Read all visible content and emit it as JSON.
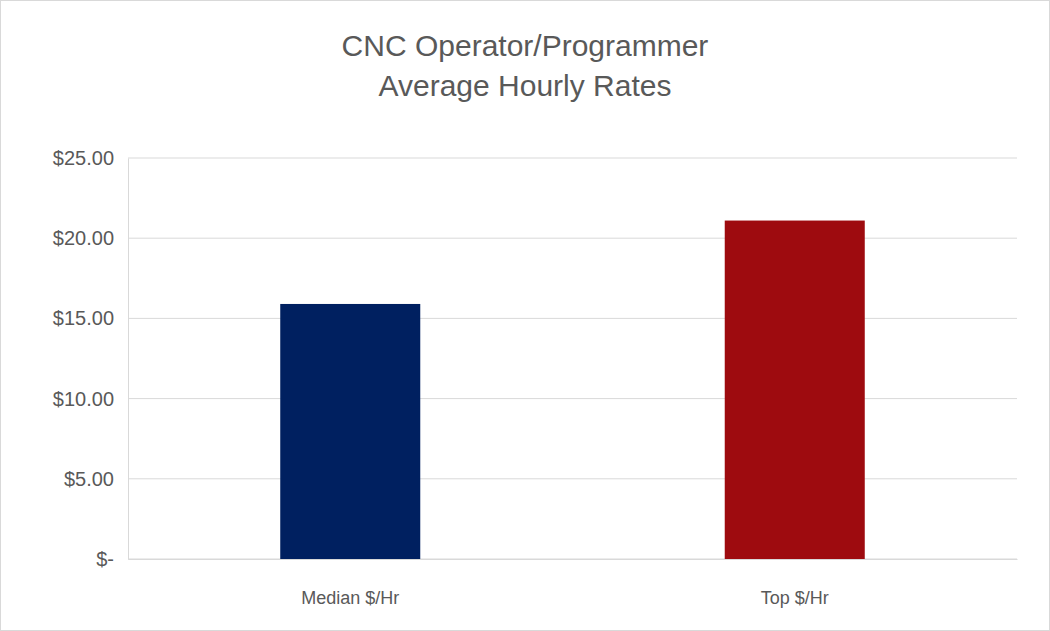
{
  "chart_data": {
    "type": "bar",
    "title": "CNC Operator/Programmer\nAverage Hourly Rates",
    "categories": [
      "Median $/Hr",
      "Top $/Hr"
    ],
    "values": [
      15.9,
      21.1
    ],
    "colors": [
      "#002060",
      "#9e0b0f"
    ],
    "ylim": [
      0,
      25
    ],
    "yticks": [
      {
        "value": 0,
        "label": "$-"
      },
      {
        "value": 5,
        "label": "$5.00"
      },
      {
        "value": 10,
        "label": "$10.00"
      },
      {
        "value": 15,
        "label": "$15.00"
      },
      {
        "value": 20,
        "label": "$20.00"
      },
      {
        "value": 25,
        "label": "$25.00"
      }
    ],
    "grid": true
  }
}
